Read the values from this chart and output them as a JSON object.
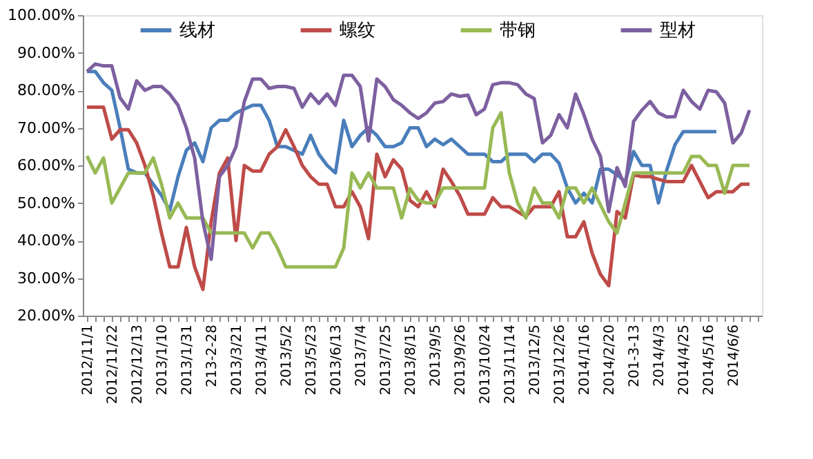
{
  "chart_data": {
    "type": "line",
    "categories": [
      "2012/11/1",
      null,
      null,
      "2012/11/22",
      null,
      null,
      "2012/12/13",
      null,
      null,
      "2013/1/10",
      null,
      null,
      "2013/1/31",
      null,
      null,
      "213-2-28",
      null,
      null,
      "2013/3/21",
      null,
      null,
      "2013/4/11",
      null,
      null,
      "2013/5/2",
      null,
      null,
      "2013/5/23",
      null,
      null,
      "2013/6/13",
      null,
      null,
      "2013/7/4",
      null,
      null,
      "2013/7/25",
      null,
      null,
      "2013/8/15",
      null,
      null,
      "2013/9/5",
      null,
      null,
      "2013/9/26",
      null,
      null,
      "2013/10/24",
      null,
      null,
      "2013/11/14",
      null,
      null,
      "2013/12/5",
      null,
      null,
      "2013/12/26",
      null,
      null,
      "2014/1/16",
      null,
      null,
      "2014/2/20",
      null,
      null,
      "201-3-13",
      null,
      null,
      "2014/4/3",
      null,
      null,
      "2014/4/25",
      null,
      null,
      "2014/5/16",
      null,
      null,
      "2014/6/6",
      null,
      null,
      null
    ],
    "series": [
      {
        "name": "线材",
        "color": "#4a7ebb",
        "values": [
          85,
          85,
          82,
          80,
          70,
          59,
          58,
          58,
          55,
          52,
          48,
          57,
          64,
          66,
          61,
          70,
          72,
          72,
          74,
          75,
          76,
          76,
          72,
          65,
          65,
          64,
          63,
          68,
          63,
          60,
          58,
          72,
          65,
          68,
          70,
          68,
          65,
          65,
          66,
          70,
          70,
          65,
          67,
          65.5,
          67,
          65,
          63,
          63,
          63,
          61,
          61,
          63,
          63,
          63,
          61,
          63,
          63,
          60.6,
          54,
          50,
          52.6,
          50,
          59,
          59,
          57.5,
          55.7,
          63.7,
          60,
          60,
          50,
          58.7,
          65.5,
          69,
          69,
          69,
          69,
          69,
          null,
          null,
          null,
          null,
          null
        ]
      },
      {
        "name": "螺纹",
        "color": "#be4b48",
        "values": [
          75.5,
          75.5,
          75.5,
          67,
          69.5,
          69.5,
          66,
          60,
          52,
          42,
          33,
          33,
          43.5,
          33,
          27,
          45,
          58,
          62,
          40,
          60,
          58.5,
          58.5,
          63,
          65,
          69.5,
          65,
          60,
          57,
          55,
          55,
          49,
          49,
          53,
          49,
          40.5,
          63,
          57,
          61.5,
          59,
          50.7,
          49,
          53,
          49,
          59,
          55.7,
          52,
          47,
          47,
          47,
          51.4,
          49,
          49,
          47.7,
          46.4,
          49,
          49,
          49,
          53,
          41,
          41,
          45,
          36.6,
          31,
          28,
          47.7,
          46,
          57.5,
          57,
          57,
          56.3,
          55.7,
          55.7,
          55.7,
          60,
          55.7,
          51.4,
          53,
          53,
          53,
          55,
          55,
          null
        ]
      },
      {
        "name": "带钢",
        "color": "#98b954",
        "values": [
          62.5,
          58,
          62,
          50,
          54,
          58,
          58,
          58,
          62,
          55,
          46,
          50,
          46,
          46,
          46,
          42,
          42,
          42,
          42,
          42,
          38,
          42,
          42,
          38,
          33,
          33,
          33,
          33,
          33,
          33,
          33,
          38,
          58,
          54,
          58,
          54,
          54,
          54,
          46,
          53.8,
          50.7,
          50,
          50,
          54,
          54,
          54,
          54,
          54,
          54,
          70,
          74,
          58,
          50,
          46,
          54,
          50,
          50,
          46,
          54,
          54,
          50,
          54,
          49.5,
          45,
          42,
          50,
          58,
          58,
          58,
          58,
          58,
          58,
          58,
          62.4,
          62.4,
          60,
          60,
          52.6,
          60,
          60,
          60,
          null
        ]
      },
      {
        "name": "型材",
        "color": "#7d60a0",
        "values": [
          85,
          87,
          86.5,
          86.5,
          78,
          75,
          82.5,
          80,
          81,
          81,
          79,
          76,
          70,
          62,
          45,
          35,
          57,
          60,
          65,
          77,
          83,
          83,
          80.5,
          81,
          81,
          80.5,
          75.5,
          79,
          76.5,
          79,
          76,
          84,
          84,
          81,
          66.5,
          83,
          81,
          77.5,
          76,
          74,
          72.5,
          74,
          76.6,
          77,
          79,
          78.4,
          78.7,
          73.5,
          75,
          81.5,
          82,
          82,
          81.5,
          79,
          77.8,
          66,
          68,
          73.5,
          70,
          79,
          73.5,
          67,
          62.4,
          47.7,
          59.4,
          54.4,
          71.7,
          74.7,
          77,
          74,
          72.9,
          73,
          80,
          77,
          75,
          80,
          79.6,
          76.6,
          66,
          68.6,
          74.7,
          null
        ]
      }
    ],
    "ylim": [
      20,
      100
    ],
    "yticks": [
      {
        "value": 20,
        "label": "20.00%"
      },
      {
        "value": 30,
        "label": "30.00%"
      },
      {
        "value": 40,
        "label": "40.00%"
      },
      {
        "value": 50,
        "label": "50.00%"
      },
      {
        "value": 60,
        "label": "60.00%"
      },
      {
        "value": 70,
        "label": "70.00%"
      },
      {
        "value": 80,
        "label": "80.00%"
      },
      {
        "value": 90,
        "label": "90.00%"
      },
      {
        "value": 100,
        "label": "100.00%"
      }
    ],
    "grid": false,
    "legend": "top",
    "marker": "none",
    "line_style": "solid"
  }
}
